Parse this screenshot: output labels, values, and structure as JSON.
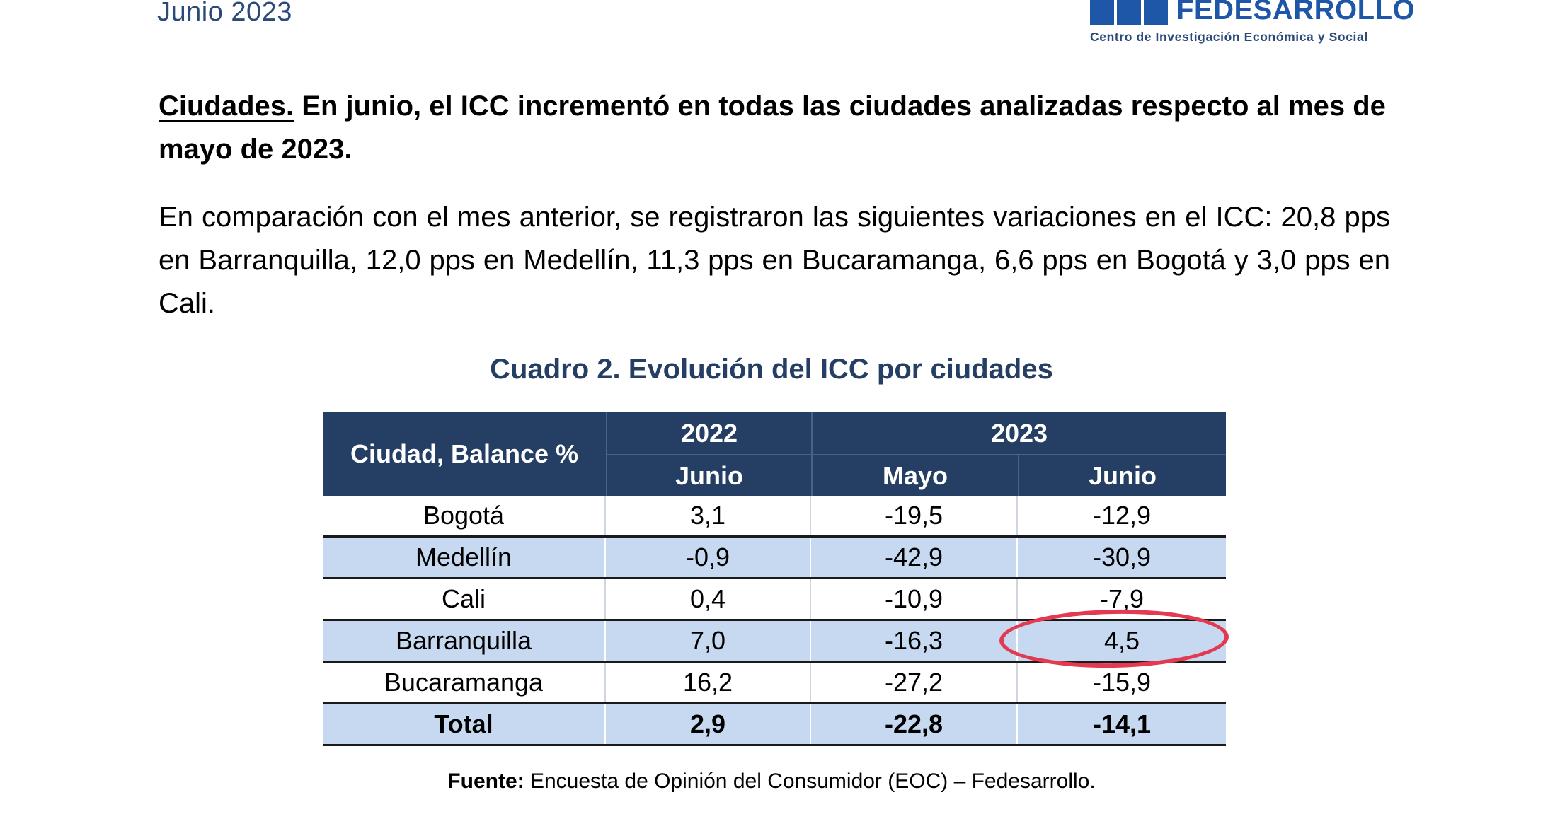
{
  "header": {
    "date": "Junio 2023",
    "logo_name": "FEDESARROLLO",
    "logo_subtitle": "Centro de Investigación Económica y Social",
    "logo_color": "#1e56a8"
  },
  "intro": {
    "heading_underlined": "Ciudades.",
    "heading_rest": " En junio, el ICC incrementó en todas las ciudades analizadas respecto al mes de mayo de 2023.",
    "body": "En comparación con el mes anterior, se registraron las siguientes variaciones en el ICC: 20,8 pps en Barranquilla, 12,0 pps en Medellín, 11,3 pps en Bucaramanga, 6,6 pps en Bogotá y 3,0 pps en Cali."
  },
  "table": {
    "title": "Cuadro 2. Evolución del ICC por ciudades",
    "header_color": "#243e64",
    "stripe_color": "#c6d9f1",
    "col_city": "Ciudad, Balance %",
    "year_2022": "2022",
    "year_2023": "2023",
    "month_2022_jun": "Junio",
    "month_2023_may": "Mayo",
    "month_2023_jun": "Junio",
    "rows": [
      {
        "city": "Bogotá",
        "jun2022": "3,1",
        "may2023": "-19,5",
        "jun2023": "-12,9"
      },
      {
        "city": "Medellín",
        "jun2022": "-0,9",
        "may2023": "-42,9",
        "jun2023": "-30,9"
      },
      {
        "city": "Cali",
        "jun2022": "0,4",
        "may2023": "-10,9",
        "jun2023": "-7,9"
      },
      {
        "city": "Barranquilla",
        "jun2022": "7,0",
        "may2023": "-16,3",
        "jun2023": "4,5"
      },
      {
        "city": "Bucaramanga",
        "jun2022": "16,2",
        "may2023": "-27,2",
        "jun2023": "-15,9"
      },
      {
        "city": "Total",
        "jun2022": "2,9",
        "may2023": "-22,8",
        "jun2023": "-14,1"
      }
    ],
    "highlight_color": "#e33a52"
  },
  "source": {
    "label": "Fuente:",
    "text": " Encuesta de Opinión del Consumidor (EOC) – Fedesarrollo."
  }
}
